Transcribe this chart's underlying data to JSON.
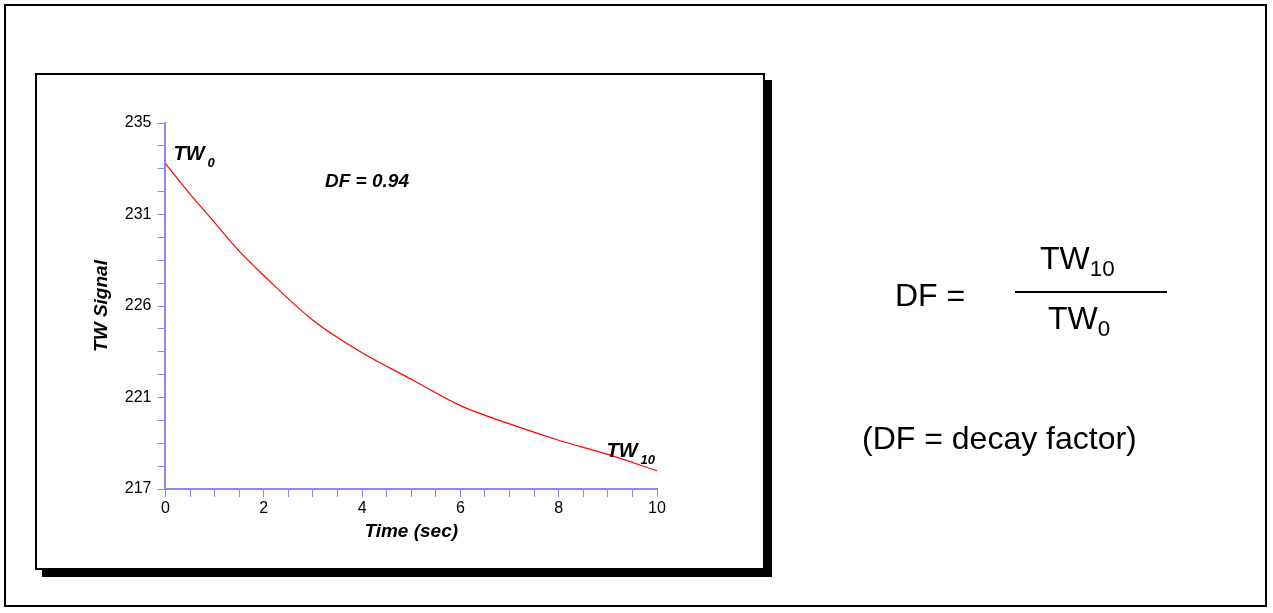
{
  "chart_data": {
    "type": "line",
    "xlabel": "Time (sec)",
    "ylabel": "TW Signal",
    "x": [
      0,
      0.5,
      1,
      1.5,
      2,
      3,
      4,
      5,
      6,
      7,
      8,
      9,
      10
    ],
    "series": [
      {
        "color": "#ff0000",
        "values": [
          233.0,
          231.5,
          230.1,
          228.7,
          227.5,
          225.3,
          223.7,
          222.4,
          221.1,
          220.2,
          219.4,
          218.7,
          217.9
        ]
      }
    ],
    "xlim": [
      0,
      10
    ],
    "xticks": [
      0,
      {
        "value": 0.5,
        "label": null
      },
      {
        "value": 1,
        "label": null
      },
      {
        "value": 1.5,
        "label": null
      },
      2,
      {
        "value": 2.5,
        "label": null
      },
      {
        "value": 3,
        "label": null
      },
      {
        "value": 3.5,
        "label": null
      },
      4,
      {
        "value": 4.5,
        "label": null
      },
      {
        "value": 5,
        "label": null
      },
      {
        "value": 5.5,
        "label": null
      },
      6,
      {
        "value": 6.5,
        "label": null
      },
      {
        "value": 7,
        "label": null
      },
      {
        "value": 7.5,
        "label": null
      },
      8,
      {
        "value": 8.5,
        "label": null
      },
      {
        "value": 9,
        "label": null
      },
      {
        "value": 9.5,
        "label": null
      },
      10
    ],
    "ylim": [
      217,
      235
    ],
    "yticks": [
      217,
      {
        "value": 218.125,
        "label": null
      },
      {
        "value": 219.25,
        "label": null
      },
      {
        "value": 220.375,
        "label": null
      },
      {
        "value": 221.5,
        "label": "221"
      },
      {
        "value": 222.625,
        "label": null
      },
      {
        "value": 223.75,
        "label": null
      },
      {
        "value": 224.875,
        "label": null
      },
      226,
      {
        "value": 227.125,
        "label": null
      },
      {
        "value": 228.25,
        "label": null
      },
      {
        "value": 229.375,
        "label": null
      },
      {
        "value": 230.5,
        "label": "231"
      },
      {
        "value": 231.625,
        "label": null
      },
      {
        "value": 232.75,
        "label": null
      },
      {
        "value": 233.875,
        "label": null
      },
      235
    ],
    "grid": false,
    "legend": false,
    "marker": "none",
    "line_style": "solid",
    "annotations": [
      {
        "text": "TW$_{0}$",
        "x": 0,
        "y": 233.0
      },
      {
        "text": "TW$_{10}$",
        "x": 10,
        "y": 217.9
      },
      "DF = 0.94",
      "DF =",
      "TW$_{10}$",
      "TW$_{0}$",
      "(DF = decay factor)"
    ]
  }
}
